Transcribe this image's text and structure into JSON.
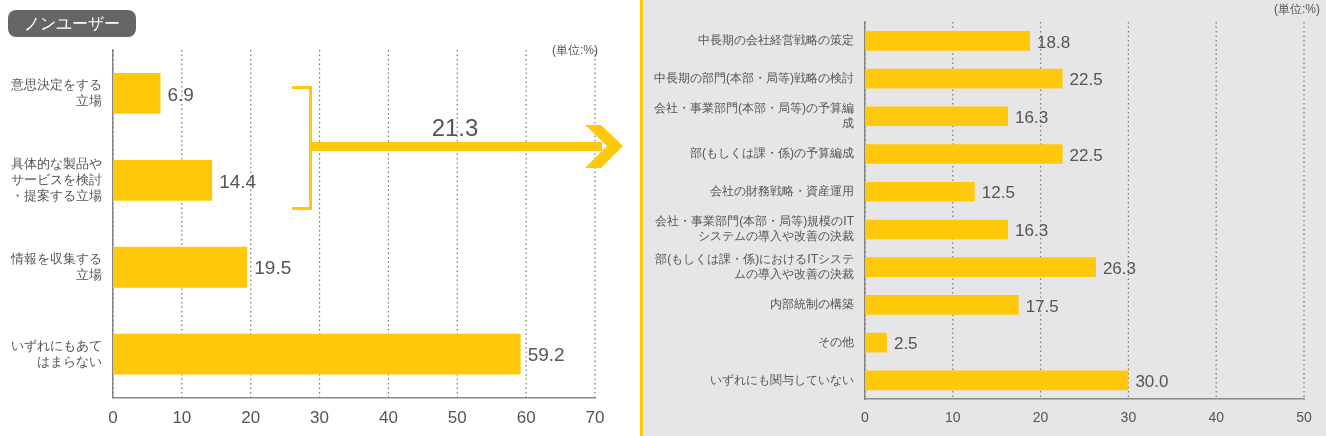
{
  "chart_data": [
    {
      "type": "bar",
      "orientation": "horizontal",
      "title": "ノンユーザー",
      "categories": [
        "意思決定をする立場",
        "具体的な製品やサービスを検討・提案する立場",
        "情報を収集する立場",
        "いずれにもあてはまらない"
      ],
      "values": [
        6.9,
        14.4,
        19.5,
        59.2
      ],
      "value_labels": [
        "6.9",
        "14.4",
        "19.5",
        "59.2"
      ],
      "color": "#ffc80a",
      "xlim": [
        0,
        70
      ],
      "xticks": [
        0,
        10,
        20,
        30,
        40,
        50,
        60,
        70
      ],
      "grid": "x",
      "annotations": [
        "(単位:%)",
        "21.3"
      ]
    },
    {
      "type": "bar",
      "orientation": "horizontal",
      "categories": [
        "中長期の会社経営戦略の策定",
        "中長期の部門(本部・局等)戦略の検討",
        "会社・事業部門(本部・局等)の予算編成",
        "部(もしくは課・係)の予算編成",
        "会社の財務戦略・資産運用",
        "会社・事業部門(本部・局等)規模のITシステムの導入や改善の決裁",
        "部(もしくは課・係)におけるITシステムの導入や改善の決裁",
        "内部統制の構築",
        "その他",
        "いずれにも関与していない"
      ],
      "values": [
        18.8,
        22.5,
        16.3,
        22.5,
        12.5,
        16.3,
        26.3,
        17.5,
        2.5,
        30.0
      ],
      "value_labels": [
        "18.8",
        "22.5",
        "16.3",
        "22.5",
        "12.5",
        "16.3",
        "26.3",
        "17.5",
        "2.5",
        "30.0"
      ],
      "color": "#ffc80a",
      "xlim": [
        0,
        50
      ],
      "xticks": [
        0,
        10,
        20,
        30,
        40,
        50
      ],
      "grid": "x",
      "annotations": [
        "(単位:%)"
      ]
    }
  ]
}
